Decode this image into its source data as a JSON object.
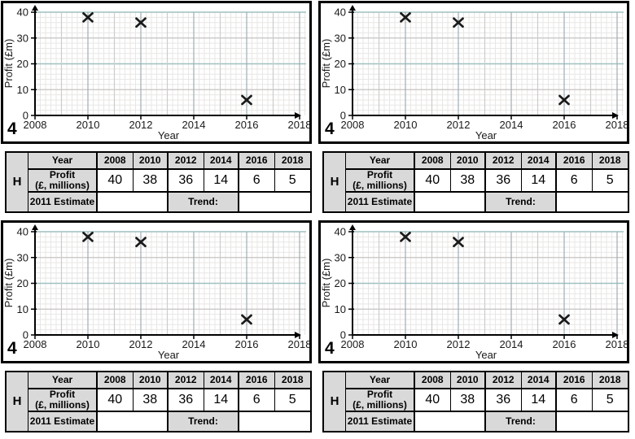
{
  "page": {
    "background": "#ffffff",
    "panel_count": 4
  },
  "chart_data": {
    "type": "scatter",
    "title": "",
    "xlabel": "Year",
    "ylabel": "Profit (£m)",
    "x_ticks": [
      "2008",
      "2010",
      "2012",
      "2014",
      "2016",
      "2018"
    ],
    "x_tick_values": [
      2008,
      2010,
      2012,
      2014,
      2016,
      2018
    ],
    "y_ticks": [
      "0",
      "10",
      "20",
      "30",
      "40"
    ],
    "y_tick_values": [
      0,
      10,
      20,
      30,
      40
    ],
    "xlim": [
      2008,
      2018.5
    ],
    "ylim": [
      0,
      40
    ],
    "grid": {
      "minor_x_years": 0.2,
      "minor_y_units": 2,
      "major_x_years": 1,
      "major_y_units": 10,
      "visible": true
    },
    "legend": "none",
    "marker": "x",
    "points": [
      {
        "x": 2010,
        "y": 38
      },
      {
        "x": 2012,
        "y": 36
      },
      {
        "x": 2016,
        "y": 6
      }
    ],
    "colors": {
      "marker": "#1a1a1a",
      "axis": "#000000",
      "grid_minor": "#e9e7e5",
      "grid_major_gray": "#c6c3c1",
      "grid_major_teal": "#9fc0c0",
      "grid_year_labeled": "#9fadb5",
      "grid_year_unlabeled": "#cccccb"
    }
  },
  "panel": {
    "question_number": "4",
    "section_label": "H",
    "table": {
      "header_bg": "#d9d9d9",
      "year_header": "Year",
      "years": [
        "2008",
        "2010",
        "2012",
        "2014",
        "2016",
        "2018"
      ],
      "profit_label_line1": "Profit",
      "profit_label_line2": "(£, millions)",
      "profit_values": [
        "40",
        "38",
        "36",
        "14",
        "6",
        "5"
      ],
      "estimate_label": "2011 Estimate",
      "trend_label": "Trend:"
    }
  }
}
